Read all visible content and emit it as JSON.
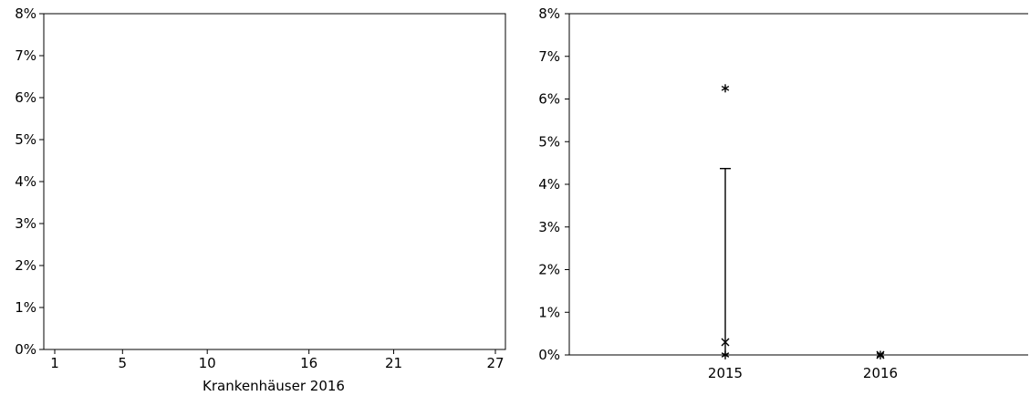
{
  "chart_data": [
    {
      "type": "scatter",
      "title": "",
      "xlabel": "Krankenhäuser 2016",
      "ylabel": "",
      "x_ticks": [
        "1",
        "5",
        "10",
        "16",
        "21",
        "27"
      ],
      "xlim": [
        1,
        27
      ],
      "y_ticks": [
        "0%",
        "1%",
        "2%",
        "3%",
        "4%",
        "5%",
        "6%",
        "7%",
        "8%"
      ],
      "ylim": [
        0,
        8
      ],
      "unit": "%",
      "points": [],
      "grid": false
    },
    {
      "type": "box",
      "title": "",
      "xlabel": "",
      "ylabel": "",
      "categories": [
        "2015",
        "2016"
      ],
      "y_ticks": [
        "0%",
        "1%",
        "2%",
        "3%",
        "4%",
        "5%",
        "6%",
        "7%",
        "8%"
      ],
      "ylim": [
        0,
        8
      ],
      "unit": "%",
      "grid": false,
      "series": [
        {
          "category": "2015",
          "min": 0,
          "q1": 0,
          "median": 0,
          "q3": 0,
          "whisker_high": 4.37,
          "mean": 0.3,
          "outliers": [
            6.25
          ]
        },
        {
          "category": "2016",
          "min": 0,
          "q1": 0,
          "median": 0,
          "q3": 0,
          "whisker_high": 0,
          "mean": 0,
          "outliers": []
        }
      ]
    }
  ]
}
